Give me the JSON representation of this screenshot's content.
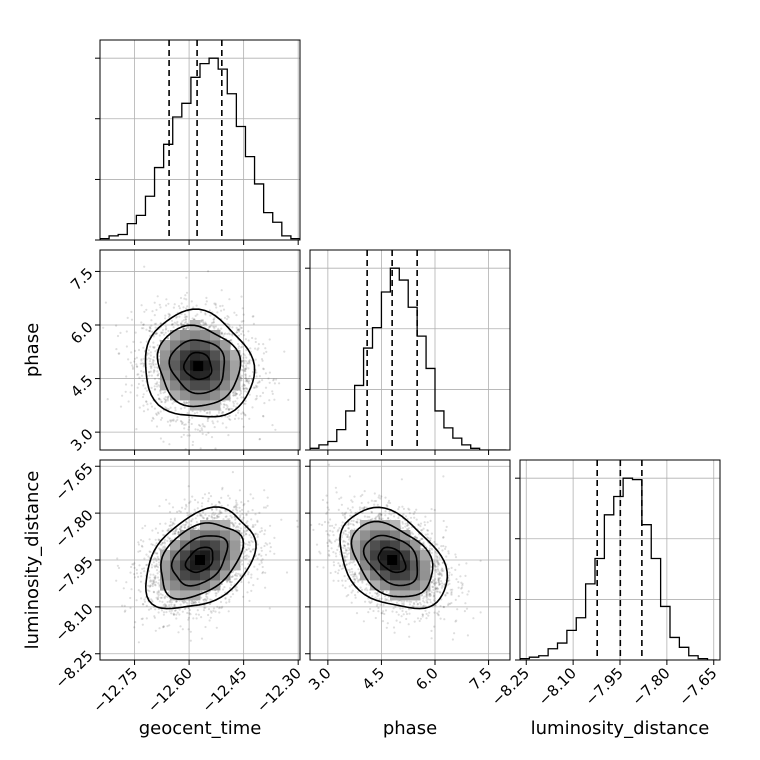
{
  "chart_data": {
    "type": "corner",
    "parameters": [
      "geocent_time",
      "phase",
      "luminosity_distance"
    ],
    "axis_labels": [
      "geocent_time",
      "phase",
      "luminosity_distance"
    ],
    "ranges": {
      "geocent_time": [
        -12.845,
        -12.295
      ],
      "phase": [
        2.5,
        8.1
      ],
      "luminosity_distance": [
        -8.27,
        -7.63
      ]
    },
    "ticks": {
      "geocent_time": {
        "values": [
          -12.75,
          -12.6,
          -12.45,
          -12.3
        ],
        "labels": [
          "−12.75",
          "−12.60",
          "−12.45",
          "−12.30"
        ]
      },
      "phase": {
        "values": [
          3.0,
          4.5,
          6.0,
          7.5
        ],
        "labels": [
          "3.0",
          "4.5",
          "6.0",
          "7.5"
        ]
      },
      "luminosity_distance": {
        "values": [
          -8.25,
          -8.1,
          -7.95,
          -7.8,
          -7.65
        ],
        "labels": [
          "−8.25",
          "−8.10",
          "−7.95",
          "−7.80",
          "−7.65"
        ]
      }
    },
    "histograms": {
      "geocent_time": {
        "bin_edges": [
          -12.845,
          -12.82,
          -12.795,
          -12.77,
          -12.745,
          -12.72,
          -12.695,
          -12.67,
          -12.645,
          -12.62,
          -12.595,
          -12.57,
          -12.545,
          -12.52,
          -12.495,
          -12.47,
          -12.445,
          -12.42,
          -12.395,
          -12.37,
          -12.345,
          -12.32,
          -12.295
        ],
        "counts": [
          1,
          3,
          4,
          12,
          18,
          32,
          53,
          70,
          90,
          100,
          119,
          129,
          133,
          125,
          107,
          83,
          61,
          41,
          20,
          13,
          3,
          1
        ],
        "quantiles": [
          -12.655,
          -12.578,
          -12.51
        ]
      },
      "phase": {
        "bin_edges": [
          2.5,
          2.75,
          3.0,
          3.25,
          3.5,
          3.75,
          4.0,
          4.25,
          4.5,
          4.75,
          5.0,
          5.25,
          5.5,
          5.75,
          6.0,
          6.25,
          6.5,
          6.75,
          7.0,
          7.25,
          7.5,
          7.75,
          8.0
        ],
        "counts": [
          1,
          3,
          5,
          12,
          23,
          38,
          60,
          72,
          93,
          107,
          100,
          84,
          67,
          48,
          23,
          13,
          7,
          3,
          1,
          0,
          0,
          0
        ],
        "quantiles": [
          4.1,
          4.8,
          5.5
        ]
      },
      "luminosity_distance": {
        "bin_edges": [
          -8.27,
          -8.24,
          -8.21,
          -8.18,
          -8.15,
          -8.12,
          -8.09,
          -8.06,
          -8.03,
          -8.0,
          -7.97,
          -7.94,
          -7.91,
          -7.88,
          -7.85,
          -7.82,
          -7.79,
          -7.76,
          -7.73,
          -7.7,
          -7.67,
          -7.64
        ],
        "counts": [
          1,
          2,
          3,
          8,
          12,
          21,
          30,
          54,
          72,
          103,
          116,
          129,
          128,
          96,
          72,
          38,
          16,
          9,
          3,
          1,
          0
        ],
        "quantiles": [
          -8.023,
          -7.949,
          -7.88
        ]
      }
    },
    "pairs": [
      {
        "x": "geocent_time",
        "y": "phase",
        "center": [
          -12.575,
          4.85
        ],
        "sigma": [
          0.075,
          0.75
        ],
        "rho": -0.08
      },
      {
        "x": "geocent_time",
        "y": "luminosity_distance",
        "center": [
          -12.57,
          -7.95
        ],
        "sigma": [
          0.075,
          0.08
        ],
        "rho": 0.35
      },
      {
        "x": "phase",
        "y": "luminosity_distance",
        "center": [
          4.8,
          -7.95
        ],
        "sigma": [
          0.75,
          0.08
        ],
        "rho": -0.35
      }
    ],
    "contour_levels": [
      0.5,
      1.0,
      1.5,
      2.0
    ],
    "grid": true
  }
}
